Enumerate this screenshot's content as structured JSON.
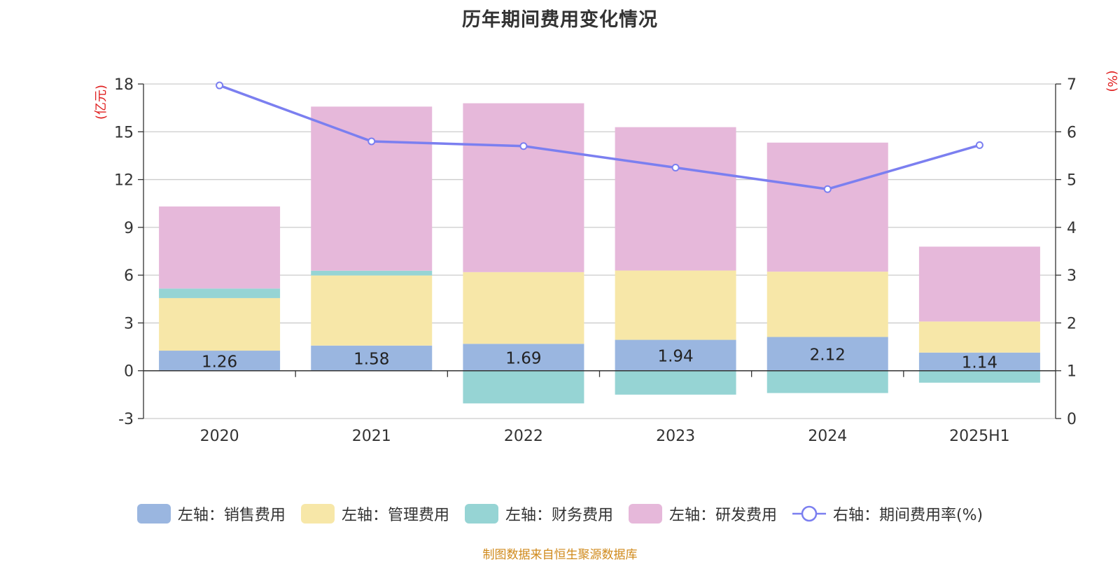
{
  "title": "历年期间费用变化情况",
  "source_note": "制图数据来自恒生聚源数据库",
  "colors": {
    "sales": "#9ab6e0",
    "admin": "#f7e7a8",
    "finance": "#96d4d4",
    "rnd": "#e6b8da",
    "rate_line": "#7b7ff0",
    "axis_unit": "#e02020",
    "source": "#d08a1c"
  },
  "chart_data": {
    "type": "bar",
    "stacked": true,
    "categories": [
      "2020",
      "2021",
      "2022",
      "2023",
      "2024",
      "2025H1"
    ],
    "y_left": {
      "label": "(亿元)",
      "ylim": [
        -3,
        18
      ],
      "ticks": [
        -3,
        0,
        3,
        6,
        9,
        12,
        15,
        18
      ]
    },
    "y_right": {
      "label": "(%)",
      "ylim": [
        0,
        7
      ],
      "ticks": [
        0,
        1,
        2,
        3,
        4,
        5,
        6,
        7
      ]
    },
    "grid": true,
    "legend_position": "bottom",
    "series": [
      {
        "name": "左轴：销售费用",
        "axis": "left",
        "type": "bar",
        "color_key": "sales",
        "values": [
          1.26,
          1.58,
          1.69,
          1.94,
          2.12,
          1.14
        ],
        "labels": [
          "1.26",
          "1.58",
          "1.69",
          "1.94",
          "2.12",
          "1.14"
        ]
      },
      {
        "name": "左轴：管理费用",
        "axis": "left",
        "type": "bar",
        "color_key": "admin",
        "values": [
          3.3,
          4.4,
          4.5,
          4.35,
          4.1,
          1.95
        ]
      },
      {
        "name": "左轴：财务费用",
        "axis": "left",
        "type": "bar",
        "color_key": "finance",
        "values": [
          0.6,
          0.3,
          -2.05,
          -1.5,
          -1.4,
          -0.75
        ]
      },
      {
        "name": "左轴：研发费用",
        "axis": "left",
        "type": "bar",
        "color_key": "rnd",
        "values": [
          5.15,
          10.3,
          10.6,
          9.0,
          8.1,
          4.7
        ]
      },
      {
        "name": "右轴：期间费用率(%)",
        "axis": "right",
        "type": "line",
        "color_key": "rate_line",
        "values": [
          6.97,
          5.8,
          5.7,
          5.25,
          4.8,
          5.72
        ]
      }
    ]
  }
}
